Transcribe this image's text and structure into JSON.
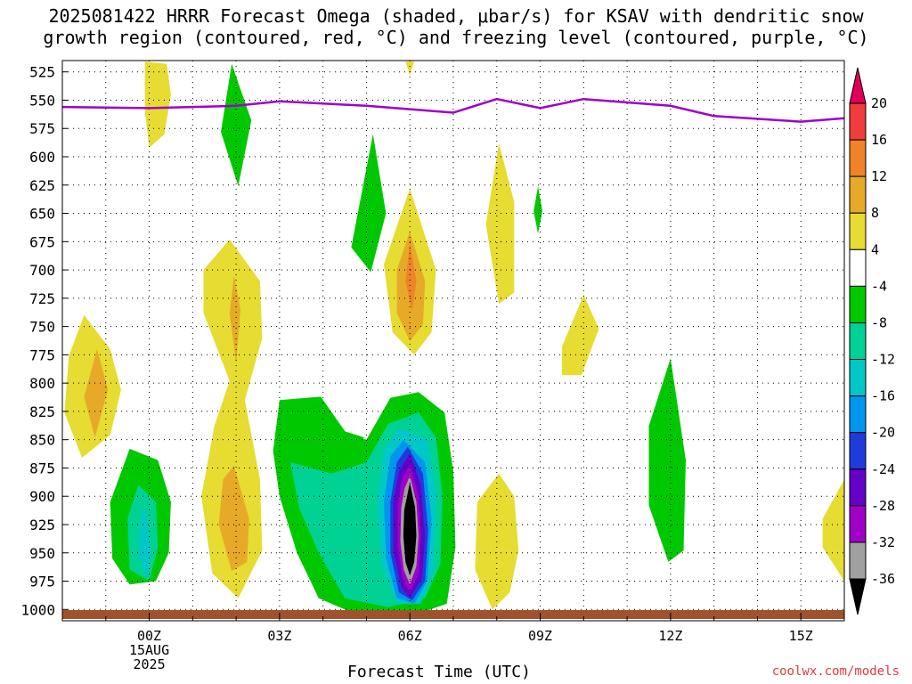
{
  "title_line1": "2025081422 HRRR Forecast Omega (shaded, μbar/s) for KSAV with dendritic snow",
  "title_line2": "growth region (contoured, red, °C) and freezing level (contoured, purple, °C)",
  "watermark": "coolwx.com/models",
  "chart_data": {
    "type": "contour",
    "xlabel": "Forecast Time (UTC)",
    "ylabel": "",
    "y_ticks": [
      525,
      550,
      575,
      600,
      625,
      650,
      675,
      700,
      725,
      750,
      775,
      800,
      825,
      850,
      875,
      900,
      925,
      950,
      975,
      1000
    ],
    "x_ticks": [
      {
        "hour": 0,
        "label": "00Z",
        "sub": [
          "15AUG",
          "2025"
        ]
      },
      {
        "hour": 3,
        "label": "03Z",
        "sub": []
      },
      {
        "hour": 6,
        "label": "06Z",
        "sub": []
      },
      {
        "hour": 9,
        "label": "09Z",
        "sub": []
      },
      {
        "hour": 12,
        "label": "12Z",
        "sub": []
      },
      {
        "hour": 15,
        "label": "15Z",
        "sub": []
      }
    ],
    "x_range_hours": [
      -2,
      16
    ],
    "y_range_hPa": [
      515,
      1010
    ],
    "grid": true,
    "colorbar": {
      "labels": [
        20,
        16,
        12,
        8,
        4,
        -4,
        -8,
        -12,
        -16,
        -20,
        -24,
        -28,
        -32,
        -36
      ],
      "bins": [
        {
          "range": ">20",
          "color": "#e0005a"
        },
        {
          "range": "16 to 20",
          "color": "#f03c3c"
        },
        {
          "range": "12 to 16",
          "color": "#f08228"
        },
        {
          "range": "8 to 12",
          "color": "#e6aa28"
        },
        {
          "range": "4 to 8",
          "color": "#e6dc32"
        },
        {
          "range": "-4 to 4",
          "color": "#ffffff"
        },
        {
          "range": "-8 to -4",
          "color": "#00c800"
        },
        {
          "range": "-12 to -8",
          "color": "#00d296"
        },
        {
          "range": "-16 to -12",
          "color": "#00c8c8"
        },
        {
          "range": "-20 to -16",
          "color": "#0096f0"
        },
        {
          "range": "-24 to -20",
          "color": "#1e3cdc"
        },
        {
          "range": "-28 to -24",
          "color": "#6400c8"
        },
        {
          "range": "-32 to -28",
          "color": "#a000c8"
        },
        {
          "range": "-36 to -32",
          "color": "#a0a0a0"
        },
        {
          "range": "<-36",
          "color": "#000000"
        }
      ]
    },
    "freezing_level": {
      "color": "#a000c8",
      "points": [
        {
          "hour": -2,
          "hPa": 556
        },
        {
          "hour": 0,
          "hPa": 557
        },
        {
          "hour": 2,
          "hPa": 555
        },
        {
          "hour": 3,
          "hPa": 551
        },
        {
          "hour": 5,
          "hPa": 555
        },
        {
          "hour": 6,
          "hPa": 558
        },
        {
          "hour": 7,
          "hPa": 561
        },
        {
          "hour": 8,
          "hPa": 549
        },
        {
          "hour": 9,
          "hPa": 557
        },
        {
          "hour": 10,
          "hPa": 549
        },
        {
          "hour": 12,
          "hPa": 555
        },
        {
          "hour": 13,
          "hPa": 564
        },
        {
          "hour": 15,
          "hPa": 569
        },
        {
          "hour": 16,
          "hPa": 566
        }
      ]
    },
    "surface": {
      "color": "#a0522d",
      "hPa": 1010
    },
    "omega_regions": [
      {
        "name": "upward-motion-0z-upper",
        "level": "4 to 8",
        "points": [
          [
            -0.1,
            516
          ],
          [
            0.4,
            518
          ],
          [
            0.5,
            545
          ],
          [
            0.35,
            580
          ],
          [
            0,
            592
          ],
          [
            -0.1,
            560
          ]
        ]
      },
      {
        "name": "sinking-2z-upper",
        "level": "-8 to -4",
        "points": [
          [
            1.9,
            518
          ],
          [
            2.35,
            568
          ],
          [
            2.05,
            626
          ],
          [
            1.65,
            578
          ]
        ]
      },
      {
        "name": "sinking-5z-mid",
        "level": "-8 to -4",
        "points": [
          [
            5.15,
            580
          ],
          [
            5.45,
            650
          ],
          [
            5.1,
            702
          ],
          [
            4.65,
            680
          ]
        ]
      },
      {
        "name": "upward-6z-tip",
        "level": "4 to 8",
        "points": [
          [
            5.9,
            516
          ],
          [
            6.1,
            516
          ],
          [
            6.0,
            528
          ]
        ]
      },
      {
        "name": "upward-8z-mid",
        "level": "4 to 8",
        "points": [
          [
            8.05,
            588
          ],
          [
            8.4,
            640
          ],
          [
            8.4,
            720
          ],
          [
            8.05,
            730
          ],
          [
            7.75,
            660
          ]
        ]
      },
      {
        "name": "sinking-9z-small",
        "level": "-8 to -4",
        "points": [
          [
            8.95,
            626
          ],
          [
            9.05,
            648
          ],
          [
            8.95,
            668
          ],
          [
            8.85,
            648
          ]
        ]
      },
      {
        "name": "upward-10z",
        "level": "4 to 8",
        "points": [
          [
            10.0,
            722
          ],
          [
            10.35,
            752
          ],
          [
            9.95,
            793
          ],
          [
            9.5,
            793
          ],
          [
            9.5,
            768
          ]
        ]
      },
      {
        "name": "sinking-12z",
        "level": "-8 to -4",
        "points": [
          [
            12.0,
            778
          ],
          [
            12.35,
            868
          ],
          [
            12.3,
            948
          ],
          [
            11.95,
            958
          ],
          [
            11.5,
            908
          ],
          [
            11.5,
            838
          ]
        ]
      },
      {
        "name": "upward-16z-edge",
        "level": "4 to 8",
        "points": [
          [
            16.0,
            885
          ],
          [
            16.0,
            975
          ],
          [
            15.5,
            945
          ],
          [
            15.5,
            920
          ]
        ]
      },
      {
        "name": "upward-0z-low",
        "level": "4 to 8",
        "points": [
          [
            -1.5,
            740
          ],
          [
            -0.9,
            770
          ],
          [
            -0.65,
            806
          ],
          [
            -0.9,
            846
          ],
          [
            -1.55,
            866
          ],
          [
            -1.95,
            826
          ],
          [
            -1.85,
            776
          ]
        ]
      },
      {
        "name": "upward-0z-low-core",
        "level": "8 to 12",
        "points": [
          [
            -1.2,
            770
          ],
          [
            -0.95,
            806
          ],
          [
            -1.25,
            848
          ],
          [
            -1.5,
            812
          ]
        ]
      },
      {
        "name": "upward-2z-column",
        "level": "4 to 8",
        "points": [
          [
            1.85,
            673
          ],
          [
            2.55,
            710
          ],
          [
            2.6,
            760
          ],
          [
            2.2,
            815
          ],
          [
            2.55,
            885
          ],
          [
            2.6,
            948
          ],
          [
            2.05,
            990
          ],
          [
            1.45,
            968
          ],
          [
            1.2,
            900
          ],
          [
            1.5,
            838
          ],
          [
            1.85,
            798
          ],
          [
            1.25,
            738
          ],
          [
            1.25,
            700
          ]
        ]
      },
      {
        "name": "upward-2z-upper-core",
        "level": "8 to 12",
        "points": [
          [
            1.95,
            705
          ],
          [
            2.1,
            735
          ],
          [
            2.0,
            783
          ],
          [
            1.85,
            738
          ]
        ]
      },
      {
        "name": "upward-2z-lower-core",
        "level": "8 to 12",
        "points": [
          [
            1.95,
            873
          ],
          [
            2.3,
            920
          ],
          [
            2.25,
            958
          ],
          [
            1.9,
            966
          ],
          [
            1.6,
            925
          ],
          [
            1.7,
            885
          ]
        ]
      },
      {
        "name": "upward-6z-column",
        "level": "4 to 8",
        "points": [
          [
            6.0,
            628
          ],
          [
            6.6,
            700
          ],
          [
            6.5,
            755
          ],
          [
            6.1,
            775
          ],
          [
            5.6,
            755
          ],
          [
            5.4,
            695
          ]
        ]
      },
      {
        "name": "upward-6z-column-mid",
        "level": "8 to 12",
        "points": [
          [
            6.0,
            666
          ],
          [
            6.35,
            710
          ],
          [
            6.3,
            748
          ],
          [
            6.0,
            763
          ],
          [
            5.7,
            738
          ],
          [
            5.7,
            700
          ]
        ]
      },
      {
        "name": "upward-6z-column-core",
        "level": "12 to 16",
        "points": [
          [
            6.0,
            675
          ],
          [
            6.15,
            710
          ],
          [
            6.05,
            736
          ],
          [
            5.9,
            710
          ]
        ]
      },
      {
        "name": "upward-8z-low",
        "level": "4 to 8",
        "points": [
          [
            8.05,
            880
          ],
          [
            8.4,
            900
          ],
          [
            8.5,
            948
          ],
          [
            8.3,
            985
          ],
          [
            7.9,
            1000
          ],
          [
            7.5,
            965
          ],
          [
            7.55,
            905
          ]
        ]
      },
      {
        "name": "upward-1z-low",
        "level": "-8 to -4",
        "points": [
          [
            -0.45,
            858
          ],
          [
            0.2,
            868
          ],
          [
            0.5,
            905
          ],
          [
            0.45,
            950
          ],
          [
            0.15,
            975
          ],
          [
            -0.45,
            978
          ],
          [
            -0.85,
            955
          ],
          [
            -0.9,
            905
          ]
        ]
      },
      {
        "name": "sinking-0z-low-mid",
        "level": "-12 to -8",
        "points": [
          [
            -0.25,
            890
          ],
          [
            0.15,
            905
          ],
          [
            0.2,
            945
          ],
          [
            0.0,
            975
          ],
          [
            -0.45,
            965
          ],
          [
            -0.5,
            920
          ]
        ]
      },
      {
        "name": "sinking-0z-low-core",
        "level": "-16 to -12",
        "points": [
          [
            -0.1,
            910
          ],
          [
            0.05,
            950
          ],
          [
            -0.05,
            972
          ],
          [
            -0.25,
            952
          ],
          [
            -0.2,
            918
          ]
        ]
      },
      {
        "name": "sinking-5z-main",
        "level": "-8 to -4",
        "points": [
          [
            3.0,
            815
          ],
          [
            3.95,
            812
          ],
          [
            4.55,
            845
          ],
          [
            5.0,
            850
          ],
          [
            5.55,
            813
          ],
          [
            6.2,
            808
          ],
          [
            6.8,
            826
          ],
          [
            7.0,
            878
          ],
          [
            7.05,
            945
          ],
          [
            6.85,
            995
          ],
          [
            6.1,
            1005
          ],
          [
            4.8,
            1005
          ],
          [
            3.9,
            990
          ],
          [
            3.4,
            950
          ],
          [
            3.0,
            900
          ],
          [
            2.85,
            860
          ]
        ]
      },
      {
        "name": "sinking-5z-main-inner",
        "level": "-12 to -8",
        "points": [
          [
            3.25,
            870
          ],
          [
            4.2,
            880
          ],
          [
            5.0,
            870
          ],
          [
            5.5,
            836
          ],
          [
            6.2,
            826
          ],
          [
            6.6,
            848
          ],
          [
            6.75,
            900
          ],
          [
            6.7,
            960
          ],
          [
            6.35,
            990
          ],
          [
            5.5,
            998
          ],
          [
            4.5,
            990
          ],
          [
            3.9,
            950
          ],
          [
            3.45,
            910
          ]
        ]
      },
      {
        "name": "sinking-6z-ring-1",
        "level": "-16 to -12",
        "points": [
          [
            5.75,
            840
          ],
          [
            6.4,
            850
          ],
          [
            6.6,
            900
          ],
          [
            6.55,
            965
          ],
          [
            6.25,
            995
          ],
          [
            5.7,
            995
          ],
          [
            5.35,
            960
          ],
          [
            5.25,
            905
          ],
          [
            5.4,
            860
          ]
        ]
      },
      {
        "name": "sinking-6z-ring-2",
        "level": "-20 to -16",
        "points": [
          [
            5.85,
            850
          ],
          [
            6.35,
            870
          ],
          [
            6.5,
            920
          ],
          [
            6.4,
            975
          ],
          [
            6.1,
            995
          ],
          [
            5.7,
            990
          ],
          [
            5.45,
            955
          ],
          [
            5.4,
            905
          ],
          [
            5.55,
            865
          ]
        ]
      },
      {
        "name": "sinking-6z-ring-3",
        "level": "-24 to -20",
        "points": [
          [
            5.95,
            856
          ],
          [
            6.3,
            880
          ],
          [
            6.42,
            930
          ],
          [
            6.35,
            975
          ],
          [
            6.05,
            992
          ],
          [
            5.75,
            985
          ],
          [
            5.55,
            950
          ],
          [
            5.55,
            905
          ],
          [
            5.7,
            870
          ]
        ]
      },
      {
        "name": "sinking-6z-ring-4",
        "level": "-28 to -24",
        "points": [
          [
            6.0,
            862
          ],
          [
            6.25,
            890
          ],
          [
            6.35,
            935
          ],
          [
            6.28,
            972
          ],
          [
            6.0,
            990
          ],
          [
            5.8,
            980
          ],
          [
            5.62,
            948
          ],
          [
            5.62,
            905
          ],
          [
            5.75,
            878
          ]
        ]
      },
      {
        "name": "sinking-6z-ring-5",
        "level": "-32 to -28",
        "points": [
          [
            6.0,
            872
          ],
          [
            6.2,
            900
          ],
          [
            6.25,
            935
          ],
          [
            6.2,
            968
          ],
          [
            6.0,
            985
          ],
          [
            5.83,
            972
          ],
          [
            5.72,
            945
          ],
          [
            5.72,
            908
          ],
          [
            5.82,
            885
          ]
        ]
      },
      {
        "name": "sinking-6z-ring-6",
        "level": "-36 to -32",
        "points": [
          [
            6.0,
            882
          ],
          [
            6.15,
            905
          ],
          [
            6.2,
            935
          ],
          [
            6.15,
            962
          ],
          [
            6.0,
            978
          ],
          [
            5.86,
            965
          ],
          [
            5.78,
            940
          ],
          [
            5.8,
            910
          ],
          [
            5.88,
            893
          ]
        ]
      },
      {
        "name": "sinking-6z-core",
        "level": "<-36",
        "points": [
          [
            6.0,
            888
          ],
          [
            6.12,
            910
          ],
          [
            6.15,
            935
          ],
          [
            6.1,
            958
          ],
          [
            6.0,
            970
          ],
          [
            5.9,
            958
          ],
          [
            5.85,
            935
          ],
          [
            5.87,
            912
          ]
        ]
      },
      {
        "name": "sinking-2z-top-edge",
        "level": "-8 to -4",
        "points": [
          [
            3.55,
            820
          ],
          [
            3.95,
            815
          ],
          [
            4.45,
            842
          ],
          [
            4.95,
            848
          ],
          [
            4.6,
            860
          ],
          [
            3.9,
            858
          ]
        ]
      }
    ]
  }
}
